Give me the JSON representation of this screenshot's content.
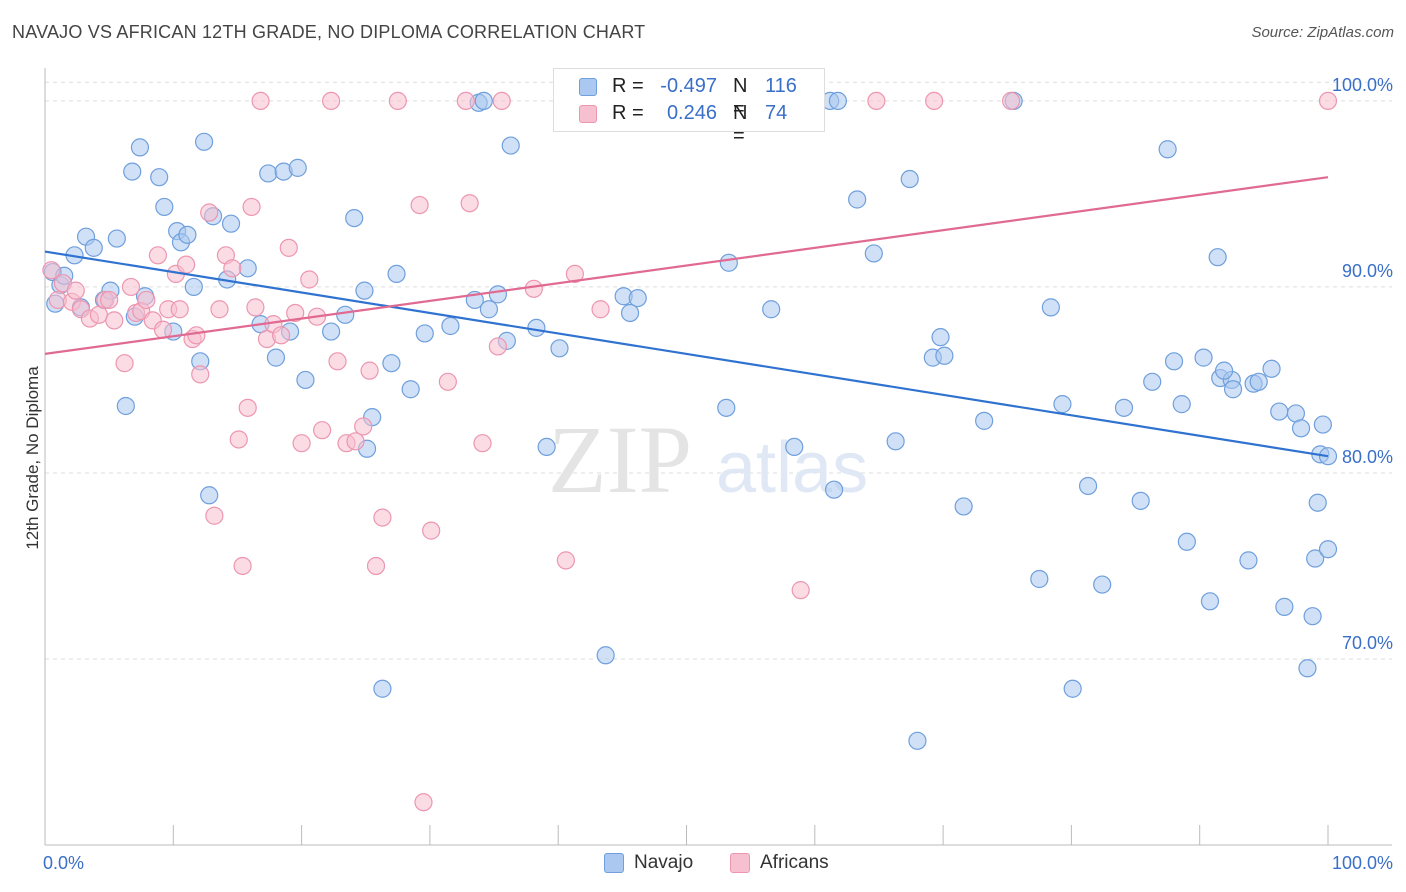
{
  "title": "NAVAJO VS AFRICAN 12TH GRADE, NO DIPLOMA CORRELATION CHART",
  "source": "Source: ZipAtlas.com",
  "watermark": {
    "zip": "ZIP",
    "atlas": "atlas"
  },
  "legend": {
    "r_label": "R =",
    "n_label": "N =",
    "rows": [
      {
        "name": "Navajo",
        "r": "-0.497",
        "n": "116"
      },
      {
        "name": "Africans",
        "r": "0.246",
        "n": "74"
      }
    ]
  },
  "colors": {
    "navajo_fill": "#aac8f0",
    "navajo_stroke": "#6f9fdc",
    "navajo_line": "#2f72d0",
    "africans_fill": "#f7c0d0",
    "africans_stroke": "#ec96b0",
    "africans_line": "#e06a92",
    "tick_label": "#3a6fc8",
    "grid": "#dddddd"
  },
  "chart_data": {
    "type": "scatter",
    "xlabel": "",
    "ylabel": "12th Grade, No Diploma",
    "x_tick_labels": [
      "0.0%",
      "100.0%"
    ],
    "y_tick_labels": [
      "100.0%",
      "90.0%",
      "80.0%",
      "70.0%"
    ],
    "y_ticks": [
      100,
      90,
      80,
      70
    ],
    "xlim": [
      0,
      100
    ],
    "ylim": [
      60,
      101.5
    ],
    "grid": "horizontal dashed",
    "legend_position": "top-center",
    "series": [
      {
        "name": "Navajo",
        "trend": {
          "x": [
            0,
            100
          ],
          "y": [
            91.9,
            80.9
          ]
        },
        "points": [
          [
            0.6,
            90.8
          ],
          [
            0.8,
            89.1
          ],
          [
            1.2,
            90.1
          ],
          [
            1.5,
            90.6
          ],
          [
            2.3,
            91.7
          ],
          [
            2.8,
            88.9
          ],
          [
            3.2,
            92.7
          ],
          [
            3.8,
            92.1
          ],
          [
            4.6,
            89.3
          ],
          [
            5.1,
            89.8
          ],
          [
            5.6,
            92.6
          ],
          [
            6.3,
            83.6
          ],
          [
            6.8,
            96.2
          ],
          [
            7.0,
            88.4
          ],
          [
            7.4,
            97.5
          ],
          [
            7.8,
            89.5
          ],
          [
            8.9,
            95.9
          ],
          [
            9.3,
            94.3
          ],
          [
            10.0,
            87.6
          ],
          [
            10.3,
            93.0
          ],
          [
            10.6,
            92.4
          ],
          [
            11.1,
            92.8
          ],
          [
            11.6,
            90.0
          ],
          [
            12.1,
            86.0
          ],
          [
            12.4,
            97.8
          ],
          [
            12.8,
            78.8
          ],
          [
            13.1,
            93.8
          ],
          [
            14.2,
            90.4
          ],
          [
            14.5,
            93.4
          ],
          [
            15.8,
            91.0
          ],
          [
            16.8,
            88.0
          ],
          [
            17.4,
            96.1
          ],
          [
            18.0,
            86.2
          ],
          [
            18.6,
            96.2
          ],
          [
            19.1,
            87.6
          ],
          [
            19.7,
            96.4
          ],
          [
            20.3,
            85.0
          ],
          [
            22.3,
            87.6
          ],
          [
            23.4,
            88.5
          ],
          [
            24.1,
            93.7
          ],
          [
            24.9,
            89.8
          ],
          [
            25.1,
            81.3
          ],
          [
            25.5,
            83.0
          ],
          [
            26.3,
            68.4
          ],
          [
            27.0,
            85.9
          ],
          [
            27.4,
            90.7
          ],
          [
            28.5,
            84.5
          ],
          [
            29.6,
            87.5
          ],
          [
            31.6,
            87.9
          ],
          [
            33.5,
            89.3
          ],
          [
            33.8,
            99.9
          ],
          [
            34.2,
            100.0
          ],
          [
            34.6,
            88.8
          ],
          [
            35.3,
            89.6
          ],
          [
            36.0,
            87.1
          ],
          [
            36.3,
            97.6
          ],
          [
            38.3,
            87.8
          ],
          [
            39.1,
            81.4
          ],
          [
            40.1,
            86.7
          ],
          [
            43.7,
            70.2
          ],
          [
            45.1,
            89.5
          ],
          [
            45.6,
            88.6
          ],
          [
            46.2,
            89.4
          ],
          [
            52.4,
            100.0
          ],
          [
            53.1,
            83.5
          ],
          [
            53.3,
            91.3
          ],
          [
            56.6,
            88.8
          ],
          [
            58.4,
            81.4
          ],
          [
            61.2,
            100.0
          ],
          [
            61.8,
            100.0
          ],
          [
            61.5,
            79.1
          ],
          [
            63.3,
            94.7
          ],
          [
            64.6,
            91.8
          ],
          [
            66.3,
            81.7
          ],
          [
            67.4,
            95.8
          ],
          [
            68.0,
            65.6
          ],
          [
            69.2,
            86.2
          ],
          [
            69.8,
            87.3
          ],
          [
            70.1,
            86.3
          ],
          [
            71.6,
            78.2
          ],
          [
            73.2,
            82.8
          ],
          [
            75.5,
            100.0
          ],
          [
            77.5,
            74.3
          ],
          [
            78.4,
            88.9
          ],
          [
            79.3,
            83.7
          ],
          [
            80.1,
            68.4
          ],
          [
            81.3,
            79.3
          ],
          [
            82.4,
            74.0
          ],
          [
            84.1,
            83.5
          ],
          [
            85.4,
            78.5
          ],
          [
            86.3,
            84.9
          ],
          [
            87.5,
            97.4
          ],
          [
            88.0,
            86.0
          ],
          [
            88.6,
            83.7
          ],
          [
            89.0,
            76.3
          ],
          [
            90.3,
            86.2
          ],
          [
            90.8,
            73.1
          ],
          [
            91.4,
            91.6
          ],
          [
            91.6,
            85.1
          ],
          [
            92.5,
            85.0
          ],
          [
            91.9,
            85.5
          ],
          [
            92.6,
            84.5
          ],
          [
            93.8,
            75.3
          ],
          [
            94.2,
            84.8
          ],
          [
            94.6,
            84.9
          ],
          [
            95.6,
            85.6
          ],
          [
            96.2,
            83.3
          ],
          [
            96.6,
            72.8
          ],
          [
            97.5,
            83.2
          ],
          [
            97.9,
            82.4
          ],
          [
            99.0,
            75.4
          ],
          [
            99.4,
            81.0
          ],
          [
            100.0,
            80.9
          ],
          [
            98.8,
            72.3
          ],
          [
            98.4,
            69.5
          ],
          [
            99.2,
            78.4
          ],
          [
            99.6,
            82.6
          ],
          [
            100.0,
            75.9
          ]
        ]
      },
      {
        "name": "Africans",
        "trend": {
          "x": [
            0,
            100
          ],
          "y": [
            86.4,
            95.9
          ]
        },
        "points": [
          [
            0.5,
            90.9
          ],
          [
            1.0,
            89.3
          ],
          [
            1.4,
            90.2
          ],
          [
            2.1,
            89.2
          ],
          [
            2.4,
            89.8
          ],
          [
            2.8,
            88.8
          ],
          [
            3.5,
            88.3
          ],
          [
            4.2,
            88.5
          ],
          [
            4.7,
            89.3
          ],
          [
            5.0,
            89.3
          ],
          [
            5.4,
            88.2
          ],
          [
            6.2,
            85.9
          ],
          [
            6.7,
            90.0
          ],
          [
            7.1,
            88.6
          ],
          [
            7.5,
            88.7
          ],
          [
            7.9,
            89.3
          ],
          [
            8.4,
            88.2
          ],
          [
            8.8,
            91.7
          ],
          [
            9.2,
            87.7
          ],
          [
            9.6,
            88.8
          ],
          [
            10.2,
            90.7
          ],
          [
            10.5,
            88.8
          ],
          [
            11.0,
            91.2
          ],
          [
            11.5,
            87.2
          ],
          [
            11.8,
            87.4
          ],
          [
            12.1,
            85.3
          ],
          [
            12.8,
            94.0
          ],
          [
            13.2,
            77.7
          ],
          [
            13.6,
            88.8
          ],
          [
            14.1,
            91.7
          ],
          [
            14.6,
            91.0
          ],
          [
            15.1,
            81.8
          ],
          [
            15.4,
            75.0
          ],
          [
            15.8,
            83.5
          ],
          [
            16.1,
            94.3
          ],
          [
            16.4,
            88.9
          ],
          [
            16.8,
            100.0
          ],
          [
            17.3,
            87.2
          ],
          [
            17.8,
            88.0
          ],
          [
            18.4,
            87.4
          ],
          [
            19.0,
            92.1
          ],
          [
            19.5,
            88.6
          ],
          [
            20.0,
            81.6
          ],
          [
            20.6,
            90.4
          ],
          [
            21.2,
            88.4
          ],
          [
            21.6,
            82.3
          ],
          [
            22.3,
            100.0
          ],
          [
            22.8,
            86.0
          ],
          [
            23.5,
            81.6
          ],
          [
            24.2,
            81.7
          ],
          [
            24.8,
            82.5
          ],
          [
            25.3,
            85.5
          ],
          [
            25.8,
            75.0
          ],
          [
            26.3,
            77.6
          ],
          [
            27.5,
            100.0
          ],
          [
            29.2,
            94.4
          ],
          [
            29.5,
            62.3
          ],
          [
            30.1,
            76.9
          ],
          [
            31.4,
            84.9
          ],
          [
            32.8,
            100.0
          ],
          [
            33.1,
            94.5
          ],
          [
            34.1,
            81.6
          ],
          [
            35.6,
            100.0
          ],
          [
            35.3,
            86.8
          ],
          [
            38.1,
            89.9
          ],
          [
            40.6,
            75.3
          ],
          [
            41.3,
            90.7
          ],
          [
            43.3,
            88.8
          ],
          [
            58.9,
            73.7
          ],
          [
            64.8,
            100.0
          ],
          [
            69.3,
            100.0
          ],
          [
            75.3,
            100.0
          ],
          [
            100.0,
            100.0
          ],
          [
            55.4,
            100.0
          ]
        ]
      }
    ]
  }
}
